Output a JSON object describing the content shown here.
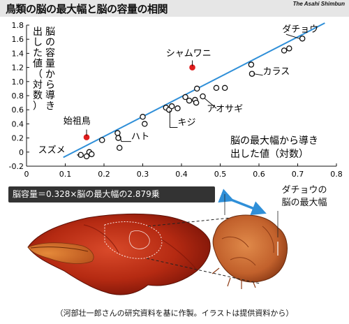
{
  "header": {
    "title": "鳥類の脳の最大幅と脳の容量の相関",
    "credit": "The Asahi Shimbun"
  },
  "chart_data": {
    "type": "scatter",
    "title": "鳥類の脳の最大幅と脳の容量の相関",
    "xlabel": [
      "脳の最大幅から導き",
      "出した値（対数）"
    ],
    "ylabel": [
      "脳の容量から導き",
      "出した値（対数）"
    ],
    "xlim": [
      0,
      0.8
    ],
    "ylim": [
      -0.2,
      1.8
    ],
    "xticks": [
      0,
      0.1,
      0.2,
      0.3,
      0.4,
      0.5,
      0.6,
      0.7,
      0.8
    ],
    "xtick_labels": [
      "0",
      "0.1",
      "0.2",
      "0.3",
      "0.4",
      "0.5",
      "0.6",
      "0.7",
      "0.8"
    ],
    "yticks": [
      -0.2,
      0,
      0.2,
      0.4,
      0.6,
      0.8,
      1.0,
      1.2,
      1.4,
      1.6,
      1.8
    ],
    "ytick_labels": [
      "-0.2",
      "0",
      "0.2",
      "0.4",
      "0.6",
      "0.8",
      "1.0",
      "1.2",
      "1.4",
      "1.6",
      "1.8"
    ],
    "grid": false,
    "trend_line": {
      "x": [
        0.095,
        0.77
      ],
      "y": [
        -0.075,
        1.83
      ]
    },
    "points": [
      {
        "x": 0.14,
        "y": -0.04
      },
      {
        "x": 0.155,
        "y": -0.06
      },
      {
        "x": 0.162,
        "y": 0.0
      },
      {
        "x": 0.168,
        "y": -0.03
      },
      {
        "x": 0.195,
        "y": 0.17
      },
      {
        "x": 0.235,
        "y": 0.27
      },
      {
        "x": 0.237,
        "y": 0.2
      },
      {
        "x": 0.24,
        "y": 0.06
      },
      {
        "x": 0.3,
        "y": 0.5
      },
      {
        "x": 0.305,
        "y": 0.4
      },
      {
        "x": 0.36,
        "y": 0.63
      },
      {
        "x": 0.368,
        "y": 0.6
      },
      {
        "x": 0.375,
        "y": 0.65
      },
      {
        "x": 0.39,
        "y": 0.62
      },
      {
        "x": 0.41,
        "y": 0.78
      },
      {
        "x": 0.42,
        "y": 0.73
      },
      {
        "x": 0.435,
        "y": 0.74
      },
      {
        "x": 0.438,
        "y": 0.7
      },
      {
        "x": 0.44,
        "y": 0.9
      },
      {
        "x": 0.455,
        "y": 0.79
      },
      {
        "x": 0.49,
        "y": 0.91
      },
      {
        "x": 0.512,
        "y": 0.91
      },
      {
        "x": 0.58,
        "y": 1.24
      },
      {
        "x": 0.582,
        "y": 1.11
      },
      {
        "x": 0.665,
        "y": 1.44
      },
      {
        "x": 0.678,
        "y": 1.47
      },
      {
        "x": 0.712,
        "y": 1.61
      }
    ],
    "highlight_points": [
      {
        "x": 0.155,
        "y": 0.21,
        "color": "#e01d1d"
      },
      {
        "x": 0.428,
        "y": 1.2,
        "color": "#e01d1d"
      }
    ],
    "annotations": [
      {
        "text": "ダチョウ",
        "x": 0.66,
        "y": 1.7
      },
      {
        "text": "シャムワニ",
        "x": 0.36,
        "y": 1.36
      },
      {
        "text": "カラス",
        "x": 0.61,
        "y": 1.1
      },
      {
        "text": "アオサギ",
        "x": 0.465,
        "y": 0.57
      },
      {
        "text": "キジ",
        "x": 0.39,
        "y": 0.38
      },
      {
        "text": "ハト",
        "x": 0.27,
        "y": 0.18
      },
      {
        "text": "始祖鳥",
        "x": 0.095,
        "y": 0.4
      },
      {
        "text": "スズメ",
        "x": 0.03,
        "y": -0.01
      }
    ]
  },
  "formula": "脳容量＝0.328×脳の最大幅の2.879乗",
  "callout": {
    "line1": "ダチョウの",
    "line2": "脳の最大幅"
  },
  "caption": "（河部壮一郎さんの研究資料を基に作製。イラストは提供資料から）",
  "colors": {
    "trend_line": "#2f8fd8",
    "highlight": "#e01d1d",
    "arrow": "#2f8fd8",
    "header_bg": "#e6e6e6",
    "formula_bg": "#333333"
  }
}
